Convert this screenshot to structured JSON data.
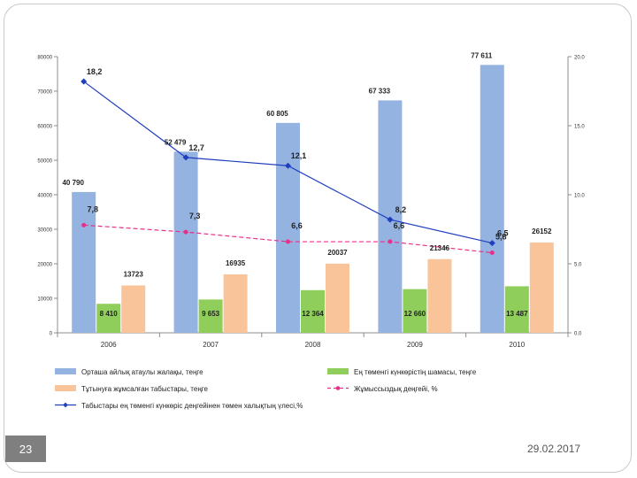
{
  "slide": {
    "number": "23",
    "date": "29.02.2017"
  },
  "chart_data": {
    "type": "bar",
    "categories": [
      "2006",
      "2007",
      "2008",
      "2009",
      "2010"
    ],
    "ylim": [
      0,
      80000
    ],
    "y_ticks": [
      "0",
      "10000",
      "20000",
      "30000",
      "40000",
      "50000",
      "60000",
      "70000",
      "80000"
    ],
    "y2lim": [
      0,
      20
    ],
    "y2_ticks": [
      "0.0",
      "5.0",
      "10.0",
      "15.0",
      "20.0"
    ],
    "series": [
      {
        "name": "Орташа айлық атаулы жалақы, теңге",
        "kind": "bar",
        "color": "#95b3e0",
        "values": [
          40790,
          52479,
          60805,
          67333,
          77611
        ],
        "labels": [
          "40 790",
          "52 479",
          "60 805",
          "67 333",
          "77 611"
        ]
      },
      {
        "name": "Ең төменгі күнкөрістің шамасы, теңге",
        "kind": "bar",
        "color": "#8fce5b",
        "values": [
          8410,
          9653,
          12364,
          12660,
          13487
        ],
        "labels": [
          "8 410",
          "9 653",
          "12 364",
          "12 660",
          "13 487"
        ]
      },
      {
        "name": "Тұтынуға жұмсалған табыстары, теңге",
        "kind": "bar",
        "color": "#f9c49a",
        "values": [
          13723,
          16935,
          20037,
          21346,
          26152
        ],
        "labels": [
          "13723",
          "16935",
          "20037",
          "21346",
          "26152"
        ]
      },
      {
        "name": "Жұмыссыздық деңгейі, %",
        "kind": "line",
        "axis": "right",
        "dashed": true,
        "color": "#e8308a",
        "values": [
          7.8,
          7.3,
          6.6,
          6.6,
          5.8
        ],
        "labels": [
          "7,8",
          "7,3",
          "6,6",
          "6,6",
          "5,8"
        ]
      },
      {
        "name": "Табыстары ең төменгі күнкөріс деңгейінен төмен халықтың үлесі,%",
        "kind": "line",
        "axis": "right",
        "dashed": false,
        "color": "#1f3fbf",
        "values": [
          18.2,
          12.7,
          12.1,
          8.2,
          6.5
        ],
        "labels": [
          "18,2",
          "12,7",
          "12,1",
          "8,2",
          "6,5"
        ]
      }
    ]
  }
}
